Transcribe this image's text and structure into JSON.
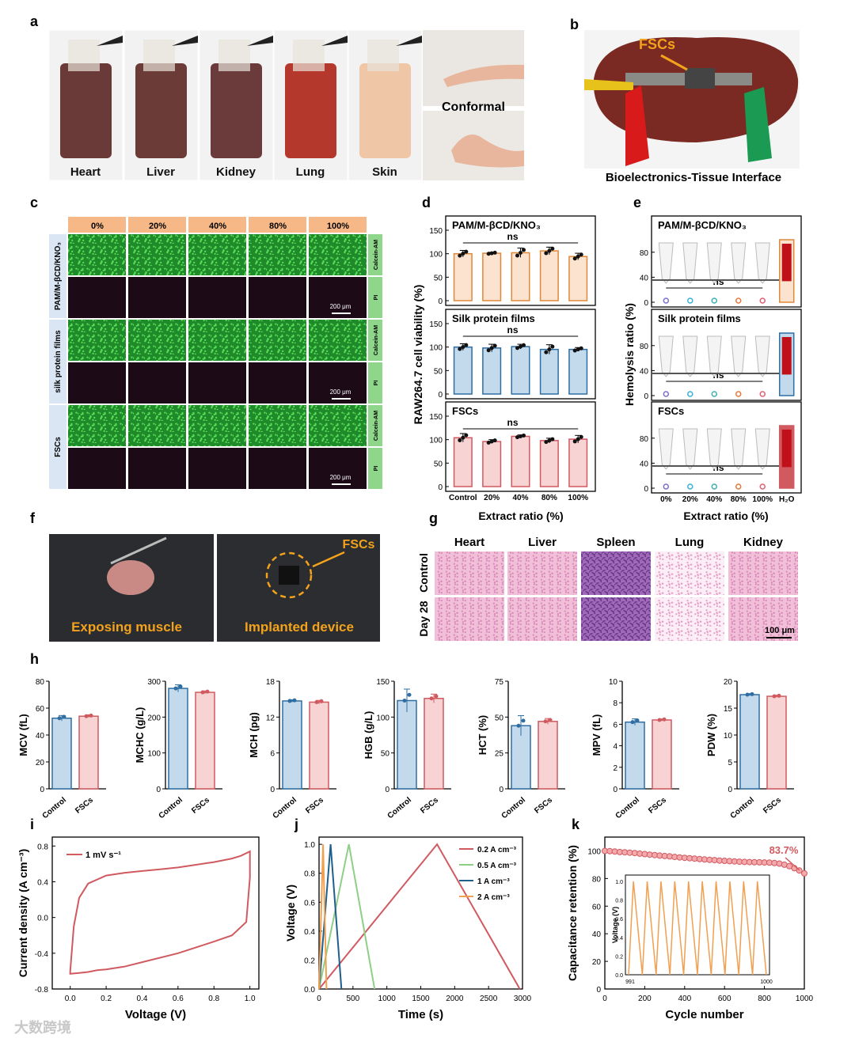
{
  "panel_letters": [
    "a",
    "b",
    "c",
    "d",
    "e",
    "f",
    "g",
    "h",
    "i",
    "j",
    "k"
  ],
  "panel_a": {
    "tissues": [
      "Heart",
      "Liver",
      "Kidney",
      "Lung",
      "Skin"
    ],
    "tissue_colors": [
      "#6a3a38",
      "#6b3b37",
      "#6a3b3a",
      "#b4392c",
      "#efc7a7"
    ],
    "conformal_label": "Conformal"
  },
  "panel_b": {
    "fscs_label": "FSCs",
    "caption": "Bioelectronics-Tissue Interface"
  },
  "panel_c": {
    "columns": [
      "0%",
      "20%",
      "40%",
      "80%",
      "100%"
    ],
    "row_groups": [
      "PAM/M-βCD/KNO₃",
      "silk protein films",
      "FSCs"
    ],
    "stains": [
      "Calcein-AM",
      "PI"
    ],
    "scale_bar": "200 μm"
  },
  "panel_f": {
    "labels": [
      "Exposing muscle",
      "Implanted device"
    ],
    "fscs_label": "FSCs"
  },
  "panel_g": {
    "columns": [
      "Heart",
      "Liver",
      "Spleen",
      "Lung",
      "Kidney"
    ],
    "rows": [
      "Control",
      "Day 28"
    ],
    "scale_bar": "100 μm"
  },
  "watermark": "大数跨境",
  "chart_data": [
    {
      "id": "d",
      "type": "bar",
      "ylabel": "RAW264.7 cell viability (%)",
      "xlabel": "Extract ratio (%)",
      "categories": [
        "Control",
        "20%",
        "40%",
        "80%",
        "100%"
      ],
      "ylim": [
        0,
        150
      ],
      "yticks": [
        0,
        50,
        100,
        150
      ],
      "subpanels": [
        {
          "title": "PAM/M-βCD/KNO₃",
          "color": "#e0883a",
          "fill": "#fbe3cf",
          "values": [
            100,
            101,
            102,
            106,
            94
          ],
          "errors": [
            7,
            2,
            10,
            8,
            7
          ],
          "annotation": "ns"
        },
        {
          "title": "Silk protein films",
          "color": "#2f6ea3",
          "fill": "#c3d9ec",
          "values": [
            100,
            98,
            101,
            95,
            95
          ],
          "errors": [
            7,
            8,
            5,
            10,
            4
          ],
          "annotation": "ns"
        },
        {
          "title": "FSCs",
          "color": "#d05a60",
          "fill": "#f7d3d4",
          "values": [
            104,
            96,
            107,
            98,
            101
          ],
          "errors": [
            9,
            4,
            3,
            5,
            8
          ],
          "annotation": "ns"
        }
      ]
    },
    {
      "id": "e",
      "type": "bar",
      "ylabel": "Hemolysis ratio (%)",
      "xlabel": "Extract ratio (%)",
      "categories": [
        "0%",
        "20%",
        "40%",
        "80%",
        "100%",
        "H₂O"
      ],
      "ylim": [
        0,
        100
      ],
      "yticks": [
        0,
        40,
        80
      ],
      "subpanels": [
        {
          "title": "PAM/M-βCD/KNO₃",
          "color": "#e0883a",
          "fill": "#fbe3cf",
          "values": [
            0.5,
            0.5,
            0.5,
            0.5,
            0.5,
            100
          ],
          "annotation": "ns"
        },
        {
          "title": "Silk protein films",
          "color": "#2f6ea3",
          "fill": "#c3d9ec",
          "values": [
            0.5,
            0.5,
            0.5,
            0.5,
            0.5,
            100
          ],
          "annotation": "ns"
        },
        {
          "title": "FSCs",
          "color": "#d05a60",
          "fill": "#d05a60",
          "values": [
            0.5,
            0.5,
            0.5,
            0.5,
            0.5,
            100
          ],
          "annotation": "ns"
        }
      ],
      "dot_colors": [
        "#7a6fd0",
        "#3ab0d6",
        "#3fb0b0",
        "#e57a3a",
        "#e06070"
      ]
    },
    {
      "id": "h",
      "type": "bar",
      "categories": [
        "Control",
        "FSCs"
      ],
      "series_colors": [
        "#2f6ea3",
        "#d05a60"
      ],
      "subpanels": [
        {
          "ylabel": "MCV (fL)",
          "ymax": 80,
          "yticks": [
            0,
            20,
            40,
            60,
            80
          ],
          "values": [
            52.5,
            54
          ],
          "errors": [
            2,
            1
          ]
        },
        {
          "ylabel": "MCHC (g/L)",
          "ymax": 300,
          "yticks": [
            0,
            100,
            200,
            300
          ],
          "values": [
            280,
            269
          ],
          "errors": [
            10,
            4
          ]
        },
        {
          "ylabel": "MCH (pg)",
          "ymax": 18,
          "yticks": [
            0,
            6,
            12,
            18
          ],
          "values": [
            14.7,
            14.5
          ],
          "errors": [
            0.2,
            0.3
          ]
        },
        {
          "ylabel": "HGB (g/L)",
          "ymax": 150,
          "yticks": [
            0,
            50,
            100,
            150
          ],
          "values": [
            123,
            126
          ],
          "errors": [
            16,
            6
          ]
        },
        {
          "ylabel": "HCT (%)",
          "ymax": 75,
          "yticks": [
            0,
            25,
            50,
            75
          ],
          "values": [
            44,
            47
          ],
          "errors": [
            7,
            2
          ]
        },
        {
          "ylabel": "MPV (fL)",
          "ymax": 10,
          "yticks": [
            0,
            2,
            4,
            6,
            8,
            10
          ],
          "values": [
            6.2,
            6.4
          ],
          "errors": [
            0.3,
            0.1
          ]
        },
        {
          "ylabel": "PDW (%)",
          "ymax": 20,
          "yticks": [
            0,
            5,
            10,
            15,
            20
          ],
          "values": [
            17.5,
            17.2
          ],
          "errors": [
            0.2,
            0.2
          ]
        }
      ]
    },
    {
      "id": "i",
      "type": "line",
      "xlabel": "Voltage (V)",
      "ylabel": "Current density (A cm⁻³)",
      "xlim": [
        -0.1,
        1.05
      ],
      "ylim": [
        -0.8,
        0.9
      ],
      "xticks": [
        0.0,
        0.2,
        0.4,
        0.6,
        0.8,
        1.0
      ],
      "yticks": [
        -0.8,
        -0.4,
        0.0,
        0.4,
        0.8
      ],
      "series": [
        {
          "name": "1 mV s⁻¹",
          "color": "#d05a60",
          "x": [
            0.0,
            0.02,
            0.05,
            0.1,
            0.2,
            0.3,
            0.4,
            0.5,
            0.6,
            0.7,
            0.8,
            0.9,
            0.95,
            1.0,
            1.0,
            0.98,
            0.9,
            0.8,
            0.6,
            0.4,
            0.3,
            0.2,
            0.15,
            0.1,
            0.05,
            0.0,
            0.0
          ],
          "y": [
            -0.6,
            -0.1,
            0.22,
            0.38,
            0.47,
            0.5,
            0.52,
            0.54,
            0.56,
            0.59,
            0.62,
            0.66,
            0.69,
            0.74,
            0.45,
            -0.05,
            -0.2,
            -0.27,
            -0.4,
            -0.5,
            -0.55,
            -0.58,
            -0.59,
            -0.61,
            -0.62,
            -0.63,
            -0.6
          ]
        }
      ]
    },
    {
      "id": "j",
      "type": "line",
      "xlabel": "Time (s)",
      "ylabel": "Voltage (V)",
      "xlim": [
        0,
        3000
      ],
      "ylim": [
        0,
        1.05
      ],
      "xticks": [
        0,
        500,
        1000,
        1500,
        2000,
        2500,
        3000
      ],
      "yticks": [
        0.0,
        0.2,
        0.4,
        0.6,
        0.8,
        1.0
      ],
      "series": [
        {
          "name": "0.2 A cm⁻³",
          "color": "#d05a60",
          "x": [
            0,
            1740,
            2960
          ],
          "y": [
            0,
            1.0,
            0
          ]
        },
        {
          "name": "0.5 A cm⁻³",
          "color": "#8ecf86",
          "x": [
            0,
            440,
            820
          ],
          "y": [
            0,
            1.0,
            0
          ]
        },
        {
          "name": "1 A cm⁻³",
          "color": "#1f5f8c",
          "x": [
            0,
            170,
            330
          ],
          "y": [
            0,
            1.0,
            0
          ]
        },
        {
          "name": "2 A cm⁻³",
          "color": "#f0a050",
          "x": [
            0,
            60,
            110
          ],
          "y": [
            0,
            1.0,
            0
          ]
        }
      ]
    },
    {
      "id": "k",
      "type": "scatter",
      "xlabel": "Cycle number",
      "ylabel": "Capacitance retention (%)",
      "xlim": [
        0,
        1000
      ],
      "ylim": [
        0,
        110
      ],
      "xticks": [
        0,
        200,
        400,
        600,
        800,
        1000
      ],
      "yticks": [
        0,
        20,
        40,
        60,
        80,
        100
      ],
      "annotation": "83.7%",
      "color": "#d05a60",
      "x": [
        0,
        25,
        50,
        75,
        100,
        125,
        150,
        175,
        200,
        225,
        250,
        275,
        300,
        325,
        350,
        375,
        400,
        425,
        450,
        475,
        500,
        525,
        550,
        575,
        600,
        625,
        650,
        675,
        700,
        725,
        750,
        775,
        800,
        825,
        850,
        875,
        900,
        925,
        950,
        975,
        1000
      ],
      "y": [
        100,
        99.8,
        99.5,
        99.2,
        99,
        98.7,
        98.4,
        98,
        97.7,
        97.3,
        97,
        96.6,
        96.3,
        96,
        95.6,
        95.3,
        95,
        94.7,
        94.4,
        94.1,
        93.8,
        93.5,
        93.3,
        93,
        92.8,
        92.6,
        92.4,
        92.2,
        92,
        91.9,
        91.8,
        91.7,
        91.6,
        91.5,
        91.2,
        90.8,
        90,
        88.9,
        87.5,
        85.8,
        83.7
      ],
      "inset": {
        "ylabel": "Voltage (V)",
        "xticks": [
          "991",
          "1000"
        ],
        "yticks": [
          0.0,
          0.2,
          0.4,
          0.6,
          0.8,
          1.0
        ],
        "cycles": 10,
        "color": "#f0a050"
      }
    }
  ]
}
